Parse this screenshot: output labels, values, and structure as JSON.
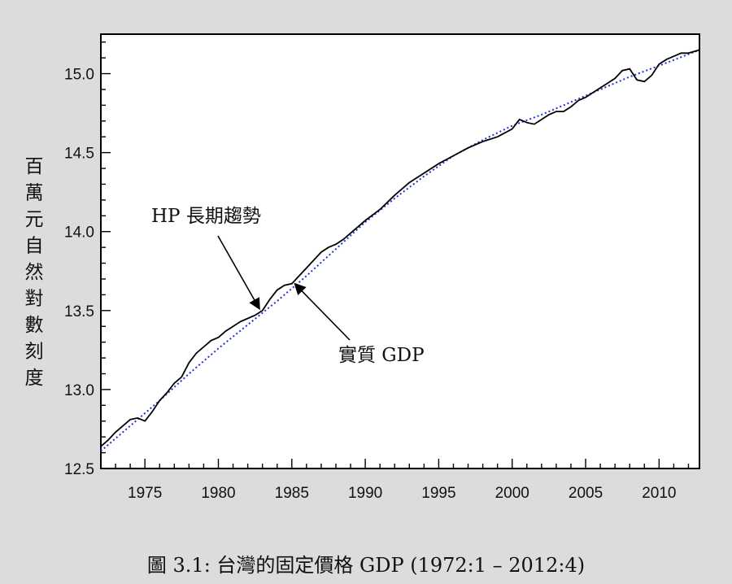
{
  "chart_data": {
    "type": "line",
    "title": "",
    "xlabel": "",
    "ylabel": "百萬元自然對數刻度",
    "xlim": [
      1972,
      2012.75
    ],
    "ylim": [
      12.5,
      15.25
    ],
    "x_ticks": [
      1975,
      1980,
      1985,
      1990,
      1995,
      2000,
      2005,
      2010
    ],
    "x_tick_labels": [
      "1975",
      "1980",
      "1985",
      "1990",
      "1995",
      "2000",
      "2005",
      "2010"
    ],
    "y_ticks": [
      12.5,
      13.0,
      13.5,
      14.0,
      14.5,
      15.0
    ],
    "y_tick_labels": [
      "12.5",
      "13.0",
      "13.5",
      "14.0",
      "14.5",
      "15.0"
    ],
    "grid": false,
    "legend": "none",
    "series": [
      {
        "name": "實質 GDP",
        "color": "#000000",
        "style": "solid",
        "x": [
          1972.0,
          1972.5,
          1973.0,
          1973.5,
          1974.0,
          1974.5,
          1975.0,
          1975.5,
          1976.0,
          1976.5,
          1977.0,
          1977.5,
          1978.0,
          1978.5,
          1979.0,
          1979.5,
          1980.0,
          1980.5,
          1981.0,
          1981.5,
          1982.0,
          1982.5,
          1983.0,
          1983.5,
          1984.0,
          1984.5,
          1985.0,
          1985.5,
          1986.0,
          1986.5,
          1987.0,
          1987.5,
          1988.0,
          1988.5,
          1989.0,
          1990.0,
          1991.0,
          1992.0,
          1993.0,
          1994.0,
          1995.0,
          1996.0,
          1997.0,
          1998.0,
          1999.0,
          2000.0,
          2000.5,
          2001.0,
          2001.5,
          2002.0,
          2002.5,
          2003.0,
          2003.5,
          2004.0,
          2004.5,
          2005.0,
          2005.5,
          2006.0,
          2006.5,
          2007.0,
          2007.5,
          2008.0,
          2008.5,
          2009.0,
          2009.5,
          2010.0,
          2010.5,
          2011.0,
          2011.5,
          2012.0,
          2012.75
        ],
        "values": [
          12.64,
          12.68,
          12.73,
          12.77,
          12.81,
          12.82,
          12.8,
          12.86,
          12.93,
          12.98,
          13.04,
          13.08,
          13.17,
          13.23,
          13.27,
          13.31,
          13.33,
          13.37,
          13.4,
          13.43,
          13.45,
          13.47,
          13.5,
          13.57,
          13.63,
          13.66,
          13.67,
          13.72,
          13.77,
          13.82,
          13.87,
          13.9,
          13.92,
          13.95,
          13.99,
          14.07,
          14.14,
          14.23,
          14.31,
          14.37,
          14.43,
          14.48,
          14.53,
          14.57,
          14.6,
          14.65,
          14.71,
          14.69,
          14.68,
          14.71,
          14.74,
          14.76,
          14.76,
          14.79,
          14.83,
          14.85,
          14.88,
          14.91,
          14.94,
          14.97,
          15.02,
          15.03,
          14.96,
          14.95,
          14.99,
          15.06,
          15.09,
          15.11,
          15.13,
          15.13,
          15.15
        ]
      },
      {
        "name": "HP 長期趨勢",
        "color": "#1f2fd6",
        "style": "dotted",
        "x": [
          1972.0,
          1974.0,
          1976.0,
          1978.0,
          1980.0,
          1982.0,
          1984.0,
          1986.0,
          1988.0,
          1990.0,
          1992.0,
          1994.0,
          1996.0,
          1998.0,
          2000.0,
          2002.0,
          2004.0,
          2006.0,
          2008.0,
          2010.0,
          2012.75
        ],
        "values": [
          12.61,
          12.77,
          12.93,
          13.1,
          13.26,
          13.41,
          13.56,
          13.72,
          13.89,
          14.06,
          14.21,
          14.35,
          14.48,
          14.58,
          14.67,
          14.74,
          14.82,
          14.9,
          14.98,
          15.05,
          15.15
        ]
      }
    ],
    "annotations": [
      {
        "text": "HP 長期趨勢",
        "points_to": {
          "x": 1982.8,
          "y": 13.51
        }
      },
      {
        "text": "實質 GDP",
        "points_to": {
          "x": 1985.2,
          "y": 13.67
        }
      }
    ],
    "caption": "圖 3.1: 台灣的固定價格 GDP (1972:1 – 2012:4)"
  }
}
